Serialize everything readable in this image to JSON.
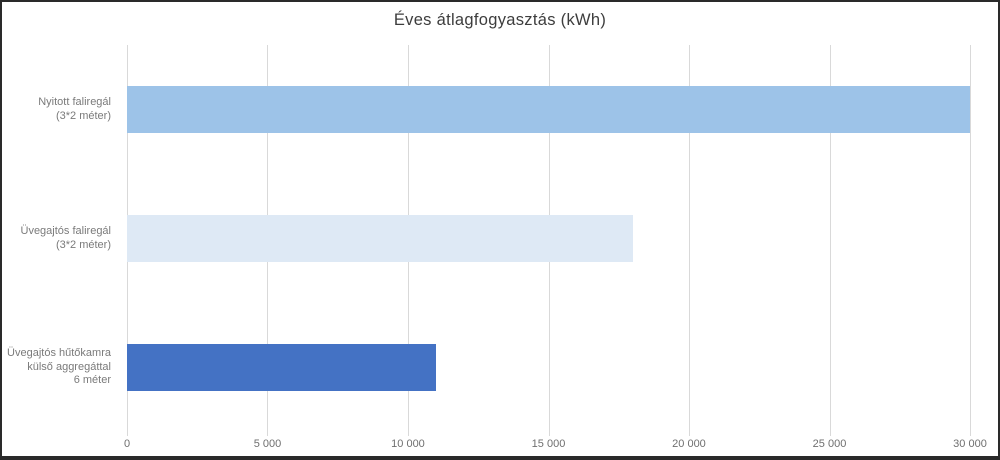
{
  "chart_data": {
    "type": "bar",
    "orientation": "horizontal",
    "title": "Éves átlagfogyasztás (kWh)",
    "categories": [
      "Nyitott faliregál\n(3*2 méter)",
      "Üvegajtós faliregál\n(3*2 méter)",
      "Üvegajtós hűtőkamra\nkülső aggregáttal\n6 méter"
    ],
    "values": [
      30000,
      18000,
      11000
    ],
    "bar_colors": [
      "#9DC3E8",
      "#DEE9F5",
      "#4472C4"
    ],
    "xlim": [
      0,
      30000
    ],
    "x_ticks": [
      0,
      5000,
      10000,
      15000,
      20000,
      25000,
      30000
    ],
    "x_tick_labels": [
      "0",
      "5 000",
      "10 000",
      "15 000",
      "20 000",
      "25 000",
      "30 000"
    ],
    "xlabel": "",
    "ylabel": "",
    "grid": "vertical",
    "gridline_color": "#D9D9D9",
    "legend": "none"
  }
}
